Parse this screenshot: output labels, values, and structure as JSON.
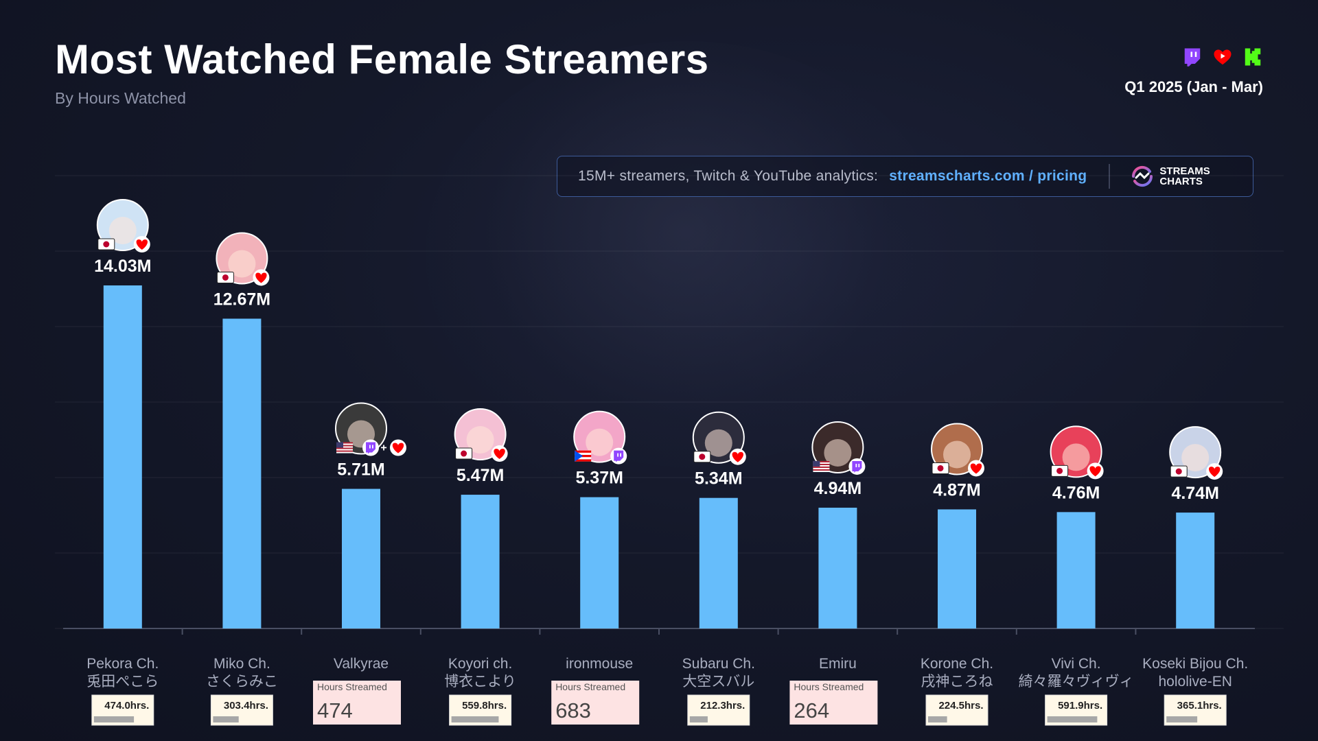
{
  "header": {
    "title": "Most Watched Female Streamers",
    "subtitle": "By Hours Watched",
    "period": "Q1 2025 (Jan - Mar)"
  },
  "platforms": [
    "twitch-icon",
    "youtube-icon",
    "kick-icon"
  ],
  "promo": {
    "text": "15M+ streamers, Twitch & YouTube analytics:",
    "link": "streamscharts.com / pricing",
    "brand_line1": "STREAMS",
    "brand_line2": "CHARTS"
  },
  "colors": {
    "bar": "#66bdfb",
    "background": "#141829",
    "accent_link": "#5fb0ff",
    "twitch": "#9146ff",
    "youtube": "#ff0000",
    "kick": "#53fc18"
  },
  "chart_data": {
    "type": "bar",
    "title": "Most Watched Female Streamers",
    "subtitle": "By Hours Watched",
    "unit": "M",
    "ylim": [
      0,
      14.03
    ],
    "grid": true,
    "categories": [
      {
        "name": "Pekora Ch.",
        "name2": "兎田ぺこら",
        "hours_label": "474.0hrs.",
        "hours_streamed": 474.0,
        "flags": [
          "JP"
        ],
        "platforms": [
          "youtube"
        ]
      },
      {
        "name": "Miko Ch.",
        "name2": "さくらみこ",
        "hours_label": "303.4hrs.",
        "hours_streamed": 303.4,
        "flags": [
          "JP"
        ],
        "platforms": [
          "youtube"
        ]
      },
      {
        "name": "Valkyrae",
        "name2": "",
        "hours_box_title": "Hours Streamed",
        "hours_box_value": "474",
        "hours_streamed": 474,
        "flags": [
          "US"
        ],
        "platforms": [
          "twitch",
          "youtube"
        ]
      },
      {
        "name": "Koyori ch.",
        "name2": "博衣こより",
        "hours_label": "559.8hrs.",
        "hours_streamed": 559.8,
        "flags": [
          "JP"
        ],
        "platforms": [
          "youtube"
        ]
      },
      {
        "name": "ironmouse",
        "name2": "",
        "hours_box_title": "Hours Streamed",
        "hours_box_value": "683",
        "hours_streamed": 683,
        "flags": [
          "PR"
        ],
        "platforms": [
          "twitch"
        ]
      },
      {
        "name": "Subaru Ch.",
        "name2": "大空スバル",
        "hours_label": "212.3hrs.",
        "hours_streamed": 212.3,
        "flags": [
          "JP"
        ],
        "platforms": [
          "youtube"
        ]
      },
      {
        "name": "Emiru",
        "name2": "",
        "hours_box_title": "Hours Streamed",
        "hours_box_value": "264",
        "hours_streamed": 264,
        "flags": [
          "US"
        ],
        "platforms": [
          "twitch"
        ]
      },
      {
        "name": "Korone Ch.",
        "name2": "戌神ころね",
        "hours_label": "224.5hrs.",
        "hours_streamed": 224.5,
        "flags": [
          "JP"
        ],
        "platforms": [
          "youtube"
        ]
      },
      {
        "name": "Vivi Ch.",
        "name2": "綺々羅々ヴィヴィ",
        "hours_label": "591.9hrs.",
        "hours_streamed": 591.9,
        "flags": [
          "JP"
        ],
        "platforms": [
          "youtube"
        ]
      },
      {
        "name": "Koseki Bijou Ch.",
        "name2": "hololive-EN",
        "hours_label": "365.1hrs.",
        "hours_streamed": 365.1,
        "flags": [
          "JP"
        ],
        "platforms": [
          "youtube"
        ]
      }
    ],
    "values": [
      14.03,
      12.67,
      5.71,
      5.47,
      5.37,
      5.34,
      4.94,
      4.87,
      4.76,
      4.74
    ],
    "value_labels": [
      "14.03M",
      "12.67M",
      "5.71M",
      "5.47M",
      "5.37M",
      "5.34M",
      "4.94M",
      "4.87M",
      "4.76M",
      "4.74M"
    ]
  }
}
